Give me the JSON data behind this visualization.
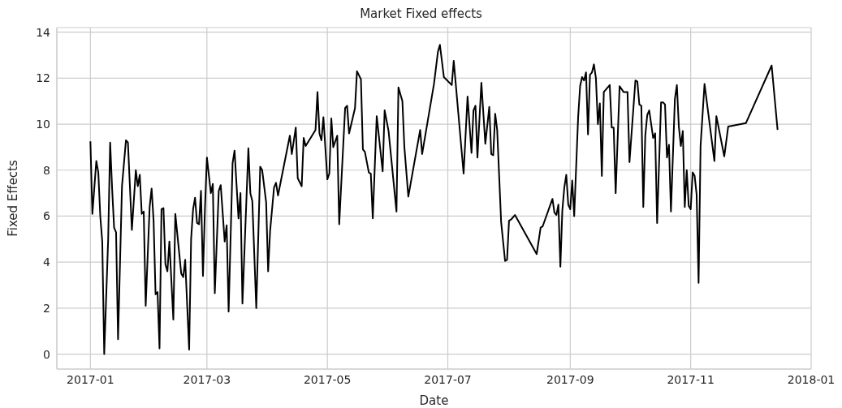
{
  "chart_data": {
    "type": "line",
    "title": "Market Fixed effects",
    "xlabel": "Date",
    "ylabel": "Fixed Effects",
    "grid": true,
    "legend": false,
    "marker": "none",
    "line_style": "solid",
    "xlim": [
      "2016-12-15",
      "2018-01-01"
    ],
    "xticks": [
      "2017-01",
      "2017-03",
      "2017-05",
      "2017-07",
      "2017-09",
      "2017-11",
      "2018-01"
    ],
    "ylim": [
      -0.65,
      14.2
    ],
    "yticks": [
      0,
      2,
      4,
      6,
      8,
      10,
      12,
      14
    ],
    "x": [
      "2017-01-01",
      "2017-01-02",
      "2017-01-04",
      "2017-01-05",
      "2017-01-06",
      "2017-01-07",
      "2017-01-08",
      "2017-01-10",
      "2017-01-11",
      "2017-01-12",
      "2017-01-13",
      "2017-01-14",
      "2017-01-15",
      "2017-01-17",
      "2017-01-19",
      "2017-01-20",
      "2017-01-22",
      "2017-01-24",
      "2017-01-25",
      "2017-01-26",
      "2017-01-27",
      "2017-01-28",
      "2017-01-29",
      "2017-01-31",
      "2017-02-01",
      "2017-02-02",
      "2017-02-03",
      "2017-02-04",
      "2017-02-05",
      "2017-02-06",
      "2017-02-07",
      "2017-02-08",
      "2017-02-09",
      "2017-02-10",
      "2017-02-12",
      "2017-02-13",
      "2017-02-16",
      "2017-02-17",
      "2017-02-18",
      "2017-02-20",
      "2017-02-21",
      "2017-02-22",
      "2017-02-23",
      "2017-02-24",
      "2017-02-25",
      "2017-02-26",
      "2017-02-27",
      "2017-02-28",
      "2017-03-01",
      "2017-03-03",
      "2017-03-04",
      "2017-03-05",
      "2017-03-07",
      "2017-03-08",
      "2017-03-10",
      "2017-03-11",
      "2017-03-12",
      "2017-03-14",
      "2017-03-15",
      "2017-03-17",
      "2017-03-18",
      "2017-03-19",
      "2017-03-22",
      "2017-03-23",
      "2017-03-24",
      "2017-03-26",
      "2017-03-28",
      "2017-03-29",
      "2017-03-31",
      "2017-04-01",
      "2017-04-02",
      "2017-04-04",
      "2017-04-05",
      "2017-04-06",
      "2017-04-12",
      "2017-04-13",
      "2017-04-15",
      "2017-04-16",
      "2017-04-18",
      "2017-04-19",
      "2017-04-20",
      "2017-04-25",
      "2017-04-26",
      "2017-04-27",
      "2017-04-28",
      "2017-04-29",
      "2017-05-01",
      "2017-05-02",
      "2017-05-03",
      "2017-05-04",
      "2017-05-06",
      "2017-05-07",
      "2017-05-10",
      "2017-05-11",
      "2017-05-12",
      "2017-05-15",
      "2017-05-16",
      "2017-05-18",
      "2017-05-19",
      "2017-05-20",
      "2017-05-22",
      "2017-05-23",
      "2017-05-24",
      "2017-05-26",
      "2017-05-29",
      "2017-05-30",
      "2017-06-01",
      "2017-06-05",
      "2017-06-06",
      "2017-06-08",
      "2017-06-09",
      "2017-06-11",
      "2017-06-17",
      "2017-06-18",
      "2017-06-24",
      "2017-06-26",
      "2017-06-27",
      "2017-06-29",
      "2017-07-03",
      "2017-07-04",
      "2017-07-09",
      "2017-07-11",
      "2017-07-13",
      "2017-07-14",
      "2017-07-15",
      "2017-07-16",
      "2017-07-18",
      "2017-07-20",
      "2017-07-22",
      "2017-07-23",
      "2017-07-24",
      "2017-07-25",
      "2017-07-26",
      "2017-07-28",
      "2017-07-30",
      "2017-07-31",
      "2017-08-01",
      "2017-08-02",
      "2017-08-04",
      "2017-08-15",
      "2017-08-17",
      "2017-08-18",
      "2017-08-23",
      "2017-08-24",
      "2017-08-25",
      "2017-08-26",
      "2017-08-27",
      "2017-08-28",
      "2017-08-29",
      "2017-08-30",
      "2017-08-31",
      "2017-09-01",
      "2017-09-02",
      "2017-09-03",
      "2017-09-05",
      "2017-09-06",
      "2017-09-07",
      "2017-09-08",
      "2017-09-09",
      "2017-09-10",
      "2017-09-11",
      "2017-09-12",
      "2017-09-13",
      "2017-09-14",
      "2017-09-15",
      "2017-09-16",
      "2017-09-17",
      "2017-09-18",
      "2017-09-21",
      "2017-09-22",
      "2017-09-23",
      "2017-09-24",
      "2017-09-26",
      "2017-09-28",
      "2017-09-30",
      "2017-10-01",
      "2017-10-04",
      "2017-10-05",
      "2017-10-06",
      "2017-10-07",
      "2017-10-08",
      "2017-10-09",
      "2017-10-10",
      "2017-10-11",
      "2017-10-12",
      "2017-10-13",
      "2017-10-14",
      "2017-10-15",
      "2017-10-17",
      "2017-10-18",
      "2017-10-19",
      "2017-10-20",
      "2017-10-21",
      "2017-10-22",
      "2017-10-24",
      "2017-10-25",
      "2017-10-26",
      "2017-10-27",
      "2017-10-28",
      "2017-10-29",
      "2017-10-30",
      "2017-10-31",
      "2017-11-01",
      "2017-11-02",
      "2017-11-03",
      "2017-11-04",
      "2017-11-05",
      "2017-11-06",
      "2017-11-08",
      "2017-11-13",
      "2017-11-14",
      "2017-11-18",
      "2017-11-20",
      "2017-11-29",
      "2017-12-12",
      "2017-12-15"
    ],
    "series": [
      {
        "color": "#000000",
        "values": [
          9.25,
          6.1,
          8.4,
          7.9,
          6.0,
          4.9,
          0.0,
          5.0,
          9.2,
          7.2,
          5.5,
          5.3,
          0.65,
          7.3,
          9.3,
          9.2,
          5.4,
          8.0,
          7.3,
          7.8,
          6.1,
          6.2,
          2.1,
          6.4,
          7.2,
          5.8,
          2.6,
          2.7,
          0.25,
          6.3,
          6.35,
          3.9,
          3.6,
          4.9,
          1.5,
          6.1,
          3.5,
          3.35,
          4.1,
          0.2,
          5.0,
          6.3,
          6.8,
          5.7,
          5.65,
          7.1,
          3.4,
          6.3,
          8.55,
          7.0,
          7.4,
          2.65,
          7.1,
          7.35,
          4.9,
          5.6,
          1.85,
          8.3,
          8.85,
          5.9,
          7.0,
          2.2,
          8.95,
          7.0,
          6.65,
          2.0,
          8.15,
          8.0,
          6.6,
          3.6,
          5.35,
          7.25,
          7.45,
          6.9,
          9.5,
          8.7,
          9.85,
          7.65,
          7.3,
          9.4,
          9.05,
          9.75,
          11.4,
          9.6,
          9.3,
          10.3,
          7.6,
          7.85,
          10.25,
          9.0,
          9.5,
          5.65,
          10.7,
          10.8,
          9.6,
          10.7,
          12.3,
          11.95,
          8.9,
          8.8,
          7.9,
          7.85,
          5.9,
          10.35,
          7.95,
          10.6,
          9.7,
          6.2,
          11.6,
          11.0,
          9.0,
          6.85,
          9.75,
          8.7,
          11.75,
          13.15,
          13.45,
          12.05,
          11.7,
          12.75,
          7.85,
          11.2,
          8.75,
          10.6,
          10.8,
          8.55,
          11.8,
          9.15,
          10.75,
          8.7,
          8.65,
          10.45,
          9.75,
          5.75,
          4.05,
          4.1,
          5.8,
          5.85,
          6.05,
          4.35,
          5.5,
          5.55,
          6.75,
          6.15,
          6.05,
          6.5,
          3.8,
          6.25,
          7.25,
          7.8,
          6.5,
          6.3,
          7.55,
          6.0,
          10.3,
          11.65,
          12.05,
          11.9,
          12.25,
          9.55,
          12.15,
          12.25,
          12.6,
          12.0,
          10.0,
          10.9,
          7.75,
          11.4,
          11.7,
          9.85,
          9.85,
          7.0,
          11.65,
          11.4,
          11.4,
          8.35,
          11.9,
          11.85,
          10.85,
          10.8,
          6.4,
          9.5,
          10.4,
          10.6,
          10.0,
          9.4,
          9.6,
          5.7,
          10.95,
          10.95,
          10.85,
          8.55,
          9.1,
          6.2,
          11.1,
          11.7,
          9.9,
          9.05,
          9.7,
          6.4,
          8.0,
          6.45,
          6.3,
          7.9,
          7.75,
          6.95,
          3.1,
          9.05,
          11.75,
          8.4,
          10.35,
          8.6,
          9.9,
          10.05,
          12.55,
          9.75
        ]
      }
    ]
  }
}
